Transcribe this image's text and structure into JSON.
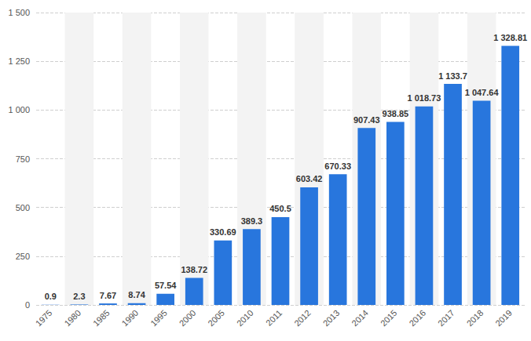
{
  "chart_data": {
    "type": "bar",
    "categories": [
      "1975",
      "1980",
      "1985",
      "1990",
      "1995",
      "2000",
      "2005",
      "2010",
      "2011",
      "2012",
      "2013",
      "2014",
      "2015",
      "2016",
      "2017",
      "2018",
      "2019"
    ],
    "values": [
      0.9,
      2.3,
      7.67,
      8.74,
      57.54,
      138.72,
      330.69,
      389.3,
      450.5,
      603.42,
      670.33,
      907.43,
      938.85,
      1018.73,
      1133.7,
      1047.64,
      1328.81
    ],
    "value_labels": [
      "0.9",
      "2.3",
      "7.67",
      "8.74",
      "57.54",
      "138.72",
      "330.69",
      "389.3",
      "450.5",
      "603.42",
      "670.33",
      "907.43",
      "938.85",
      "1 018.73",
      "1 133.7",
      "1 047.64",
      "1 328.81"
    ],
    "color": "#2876dd",
    "ylim": [
      0,
      1500
    ],
    "yticks": [
      0,
      250,
      500,
      750,
      {
        "value": 1000,
        "label": "1 000"
      },
      {
        "value": 1250,
        "label": "1 250"
      },
      {
        "value": 1500,
        "label": "1 500"
      }
    ],
    "grid": true,
    "data_labels": true
  }
}
